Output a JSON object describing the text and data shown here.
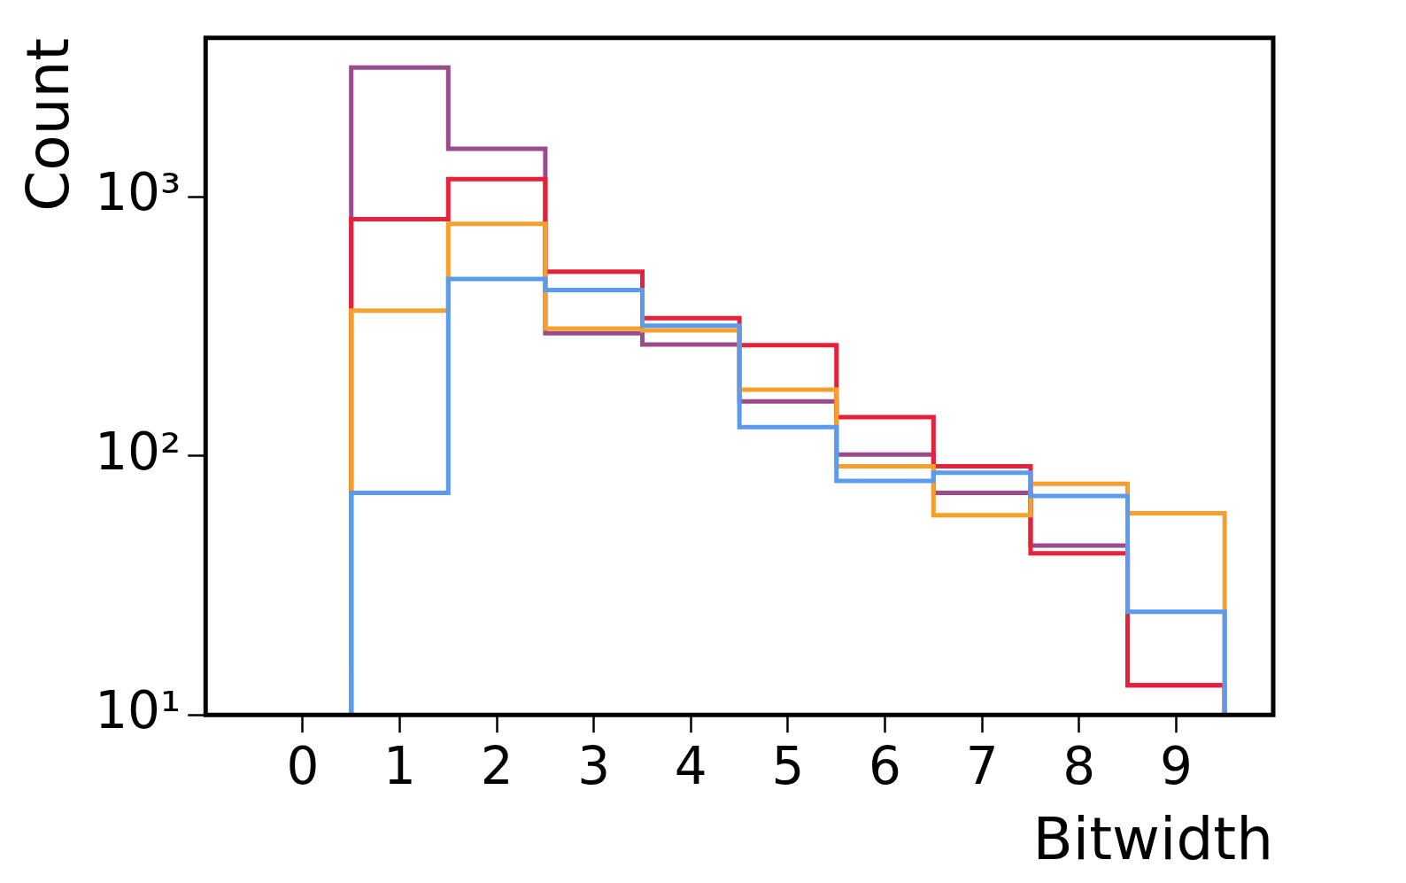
{
  "chart_data": {
    "type": "histogram",
    "xlabel": "Bitwidth",
    "ylabel": "Count",
    "log": "y",
    "grid": false,
    "legend": false,
    "bins": [
      0.5,
      1.5,
      2.5,
      3.5,
      4.5,
      5.5,
      6.5,
      7.5,
      8.5,
      9.5
    ],
    "series": [
      {
        "color": "#5a9bf0",
        "values": [
          72,
          481,
          436,
          318,
          129,
          80,
          86,
          70,
          25
        ]
      },
      {
        "color": "#f5a02a",
        "values": [
          363,
          785,
          310,
          305,
          180,
          91,
          59,
          78,
          60
        ]
      },
      {
        "color": "#e8213a",
        "values": [
          818,
          1170,
          514,
          340,
          267,
          141,
          91,
          42,
          13
        ]
      },
      {
        "color": "#9b4a8c",
        "values": [
          3150,
          1530,
          297,
          269,
          162,
          101,
          72,
          45,
          13
        ]
      }
    ],
    "xlim": [
      -1,
      10
    ],
    "xticks": [
      0,
      1,
      2,
      3,
      4,
      5,
      6,
      7,
      8,
      9
    ],
    "ylim": [
      10,
      4100
    ],
    "yticks": [
      {
        "value": 10,
        "label": "10¹"
      },
      {
        "value": 100,
        "label": "10²"
      },
      {
        "value": 1000,
        "label": "10³"
      }
    ]
  }
}
